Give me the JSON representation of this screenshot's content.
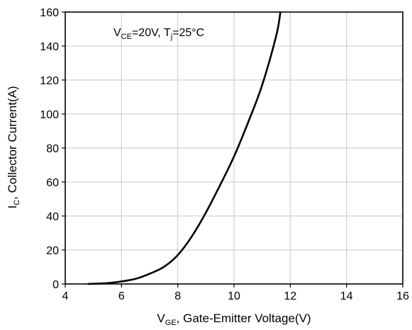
{
  "chart_data": {
    "type": "line",
    "title": "",
    "xlabel": {
      "main": "V",
      "sub": "GE",
      "rest": ", Gate-Emitter Voltage(V)"
    },
    "ylabel": {
      "main": "I",
      "sub": "C",
      "rest": ", Collector Current(A)"
    },
    "xlim": [
      4,
      16
    ],
    "ylim": [
      0,
      160
    ],
    "xticks": [
      4,
      6,
      8,
      10,
      12,
      14,
      16
    ],
    "yticks": [
      0,
      20,
      40,
      60,
      80,
      100,
      120,
      140,
      160
    ],
    "grid": true,
    "annotation": {
      "v_main": "V",
      "v_sub": "CE",
      "v_val": "=20V, ",
      "t_main": "T",
      "t_sub": "j",
      "t_val": "=25°C"
    },
    "series": [
      {
        "color": "#000000",
        "x": [
          4.8,
          5.5,
          6.0,
          6.5,
          7.0,
          7.5,
          8.0,
          8.5,
          9.0,
          9.5,
          10.0,
          10.5,
          11.0,
          11.5,
          11.65
        ],
        "y": [
          0,
          0.5,
          1.5,
          3,
          6,
          10,
          17,
          28,
          42,
          58,
          75,
          95,
          117,
          146,
          160
        ]
      }
    ]
  }
}
